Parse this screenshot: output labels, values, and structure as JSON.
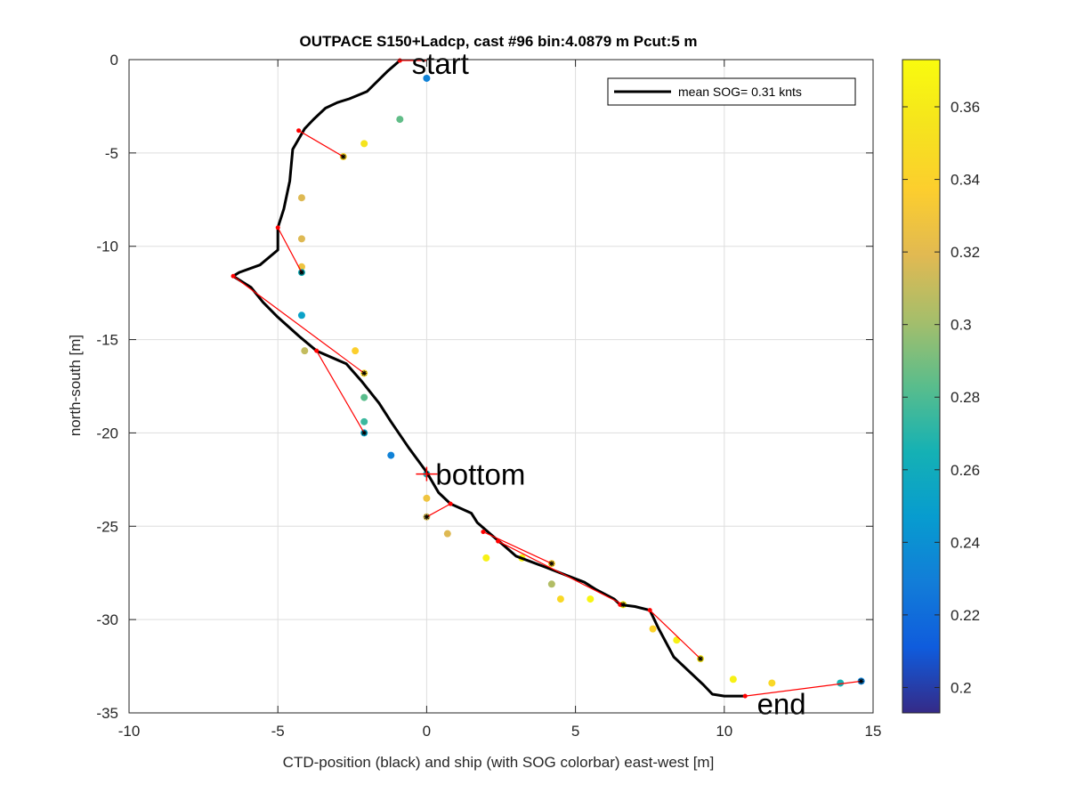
{
  "chart_data": {
    "type": "scatter",
    "title": "OUTPACE S150+Ladcp, cast #96 bin:4.0879 m  Pcut:5 m",
    "xlabel": "CTD-position (black) and ship (with SOG colorbar) east-west [m]",
    "ylabel": "north-south [m]",
    "xlim": [
      -10,
      15
    ],
    "ylim": [
      -35,
      0
    ],
    "xticks": [
      "-10",
      "-5",
      "0",
      "5",
      "10",
      "15"
    ],
    "yticks": [
      "0",
      "-5",
      "-10",
      "-15",
      "-20",
      "-25",
      "-30",
      "-35"
    ],
    "grid": true,
    "legend": {
      "placement": "top-right",
      "entry": "mean SOG=  0.31 knts"
    },
    "colorbar": {
      "range": [
        0.193,
        0.373
      ],
      "ticks": [
        "0.2",
        "0.22",
        "0.24",
        "0.26",
        "0.28",
        "0.3",
        "0.32",
        "0.34",
        "0.36"
      ],
      "colormap": "parula"
    },
    "annotations": [
      {
        "text": "start",
        "x": -0.5,
        "y": -0.2
      },
      {
        "text": "bottom",
        "x": 0.3,
        "y": -22.2
      },
      {
        "text": "end",
        "x": 11.1,
        "y": -34.5
      }
    ],
    "ctd_track": [
      [
        -0.9,
        -0.05
      ],
      [
        -1.3,
        -0.6
      ],
      [
        -2.0,
        -1.7
      ],
      [
        -2.6,
        -2.1
      ],
      [
        -3.0,
        -2.3
      ],
      [
        -3.4,
        -2.6
      ],
      [
        -3.8,
        -3.2
      ],
      [
        -4.1,
        -3.7
      ],
      [
        -4.5,
        -4.8
      ],
      [
        -4.6,
        -6.5
      ],
      [
        -4.8,
        -8.0
      ],
      [
        -5.0,
        -9.0
      ],
      [
        -5.0,
        -10.2
      ],
      [
        -5.6,
        -11.0
      ],
      [
        -6.3,
        -11.4
      ],
      [
        -6.5,
        -11.6
      ],
      [
        -5.9,
        -12.2
      ],
      [
        -5.5,
        -13.0
      ],
      [
        -5.0,
        -13.8
      ],
      [
        -4.3,
        -14.8
      ],
      [
        -3.7,
        -15.6
      ],
      [
        -2.7,
        -16.3
      ],
      [
        -2.2,
        -17.2
      ],
      [
        -1.6,
        -18.4
      ],
      [
        -1.2,
        -19.4
      ],
      [
        -0.6,
        -20.8
      ],
      [
        0.0,
        -22.1
      ],
      [
        0.4,
        -23.2
      ],
      [
        0.8,
        -23.8
      ],
      [
        1.5,
        -24.3
      ],
      [
        1.7,
        -24.8
      ],
      [
        2.2,
        -25.5
      ],
      [
        2.5,
        -25.9
      ],
      [
        3.0,
        -26.6
      ],
      [
        4.0,
        -27.2
      ],
      [
        5.3,
        -28.0
      ],
      [
        5.7,
        -28.4
      ],
      [
        6.3,
        -28.9
      ],
      [
        6.5,
        -29.2
      ],
      [
        7.0,
        -29.3
      ],
      [
        7.5,
        -29.5
      ],
      [
        7.8,
        -30.5
      ],
      [
        8.3,
        -32.0
      ],
      [
        9.3,
        -33.5
      ],
      [
        9.6,
        -34.0
      ],
      [
        10.0,
        -34.1
      ],
      [
        10.7,
        -34.1
      ]
    ],
    "ship_points": [
      {
        "x": 0.0,
        "y": -1.0,
        "sog": 0.232
      },
      {
        "x": -0.9,
        "y": -3.2,
        "sog": 0.285
      },
      {
        "x": -2.1,
        "y": -4.5,
        "sog": 0.355
      },
      {
        "x": -2.8,
        "y": -5.2,
        "sog": 0.342
      },
      {
        "x": -4.2,
        "y": -7.4,
        "sog": 0.318
      },
      {
        "x": -4.2,
        "y": -9.6,
        "sog": 0.318
      },
      {
        "x": -4.2,
        "y": -11.1,
        "sog": 0.328
      },
      {
        "x": -4.2,
        "y": -11.4,
        "sog": 0.262
      },
      {
        "x": -4.2,
        "y": -13.7,
        "sog": 0.252
      },
      {
        "x": -2.4,
        "y": -15.6,
        "sog": 0.338
      },
      {
        "x": -4.1,
        "y": -15.6,
        "sog": 0.31
      },
      {
        "x": -2.1,
        "y": -16.8,
        "sog": 0.345
      },
      {
        "x": -2.1,
        "y": -18.1,
        "sog": 0.283
      },
      {
        "x": -2.1,
        "y": -19.4,
        "sog": 0.275
      },
      {
        "x": -2.1,
        "y": -20.0,
        "sog": 0.253
      },
      {
        "x": -1.2,
        "y": -21.2,
        "sog": 0.232
      },
      {
        "x": 0.0,
        "y": -22.2,
        "sog": 0.262
      },
      {
        "x": 0.0,
        "y": -23.5,
        "sog": 0.328
      },
      {
        "x": 0.0,
        "y": -24.5,
        "sog": 0.315
      },
      {
        "x": 0.7,
        "y": -25.4,
        "sog": 0.318
      },
      {
        "x": 2.0,
        "y": -26.7,
        "sog": 0.365
      },
      {
        "x": 3.2,
        "y": -26.7,
        "sog": 0.368
      },
      {
        "x": 4.2,
        "y": -27.0,
        "sog": 0.338
      },
      {
        "x": 4.2,
        "y": -28.1,
        "sog": 0.305
      },
      {
        "x": 4.5,
        "y": -28.9,
        "sog": 0.345
      },
      {
        "x": 5.5,
        "y": -28.9,
        "sog": 0.368
      },
      {
        "x": 6.6,
        "y": -29.2,
        "sog": 0.362
      },
      {
        "x": 7.6,
        "y": -30.5,
        "sog": 0.34
      },
      {
        "x": 8.4,
        "y": -31.1,
        "sog": 0.365
      },
      {
        "x": 9.2,
        "y": -32.1,
        "sog": 0.355
      },
      {
        "x": 10.3,
        "y": -33.2,
        "sog": 0.365
      },
      {
        "x": 11.6,
        "y": -33.4,
        "sog": 0.345
      },
      {
        "x": 13.9,
        "y": -33.4,
        "sog": 0.265
      },
      {
        "x": 14.6,
        "y": -33.3,
        "sog": 0.232
      }
    ],
    "ctd_markers": [
      [
        -0.9,
        -0.05
      ],
      [
        -4.3,
        -3.8
      ],
      [
        -5.0,
        -9.0
      ],
      [
        -6.5,
        -11.6
      ],
      [
        -3.7,
        -15.6
      ],
      [
        0.8,
        -23.8
      ],
      [
        1.9,
        -25.3
      ],
      [
        2.4,
        -25.8
      ],
      [
        6.5,
        -29.2
      ],
      [
        7.5,
        -29.5
      ],
      [
        10.7,
        -34.1
      ]
    ],
    "connectors": [
      [
        [
          -4.3,
          -3.8
        ],
        [
          -2.8,
          -5.2
        ]
      ],
      [
        [
          -5.0,
          -9.0
        ],
        [
          -4.2,
          -11.4
        ]
      ],
      [
        [
          -6.5,
          -11.6
        ],
        [
          -2.1,
          -16.8
        ]
      ],
      [
        [
          -3.7,
          -15.6
        ],
        [
          -2.1,
          -20.0
        ]
      ],
      [
        [
          0.8,
          -23.8
        ],
        [
          0.0,
          -24.5
        ]
      ],
      [
        [
          1.9,
          -25.3
        ],
        [
          4.2,
          -27.0
        ]
      ],
      [
        [
          2.4,
          -25.8
        ],
        [
          6.6,
          -29.2
        ]
      ],
      [
        [
          7.5,
          -29.5
        ],
        [
          9.2,
          -32.1
        ]
      ],
      [
        [
          10.7,
          -34.1
        ],
        [
          14.6,
          -33.3
        ]
      ],
      [
        [
          -0.9,
          -0.05
        ],
        [
          0.0,
          -0.05
        ]
      ]
    ],
    "ship_black_marked": [
      [
        -2.8,
        -5.2
      ],
      [
        -4.2,
        -11.4
      ],
      [
        -2.1,
        -16.8
      ],
      [
        -2.1,
        -20.0
      ],
      [
        0.0,
        -24.5
      ],
      [
        4.2,
        -27.0
      ],
      [
        6.6,
        -29.2
      ],
      [
        9.2,
        -32.1
      ],
      [
        14.6,
        -33.3
      ]
    ],
    "bottom_marker": {
      "x": 0.0,
      "y": -22.2
    }
  }
}
